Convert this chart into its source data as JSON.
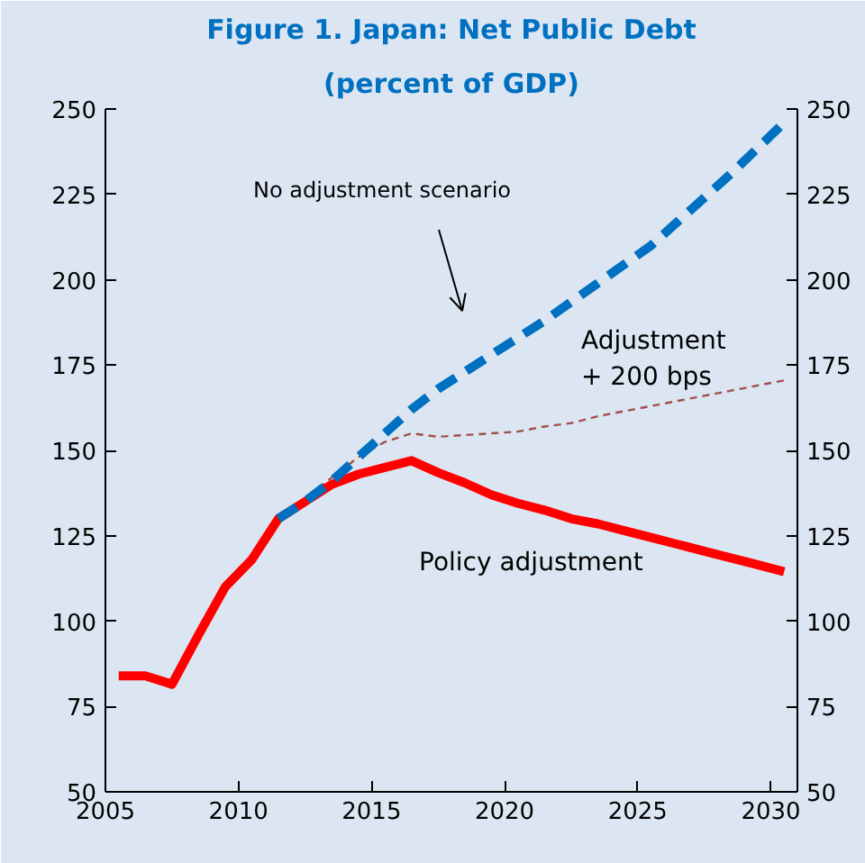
{
  "chart_data": {
    "type": "line",
    "title": "Figure 1. Japan: Net Public Debt",
    "subtitle": "(percent of GDP)",
    "annotations": [
      "No adjustment scenario"
    ],
    "xlim": [
      2005,
      2031
    ],
    "xticks": [
      2005,
      2010,
      2015,
      2020,
      2025,
      2030
    ],
    "ylim": [
      50,
      250
    ],
    "yticks": [
      50,
      75,
      100,
      125,
      150,
      175,
      200,
      225,
      250
    ],
    "y2lim": [
      50,
      250
    ],
    "y2ticks": [
      50,
      75,
      100,
      125,
      150,
      175,
      200,
      225,
      250
    ],
    "grid": false,
    "series": [
      {
        "color": "#0070c0",
        "line_style": "dashed",
        "x": [
          2011.5,
          2012.5,
          2013.5,
          2014.5,
          2015.5,
          2016.5,
          2017.5,
          2018.5,
          2019.5,
          2020.5,
          2021.5,
          2022.5,
          2023.5,
          2024.5,
          2025.5,
          2026.5,
          2027.5,
          2028.5,
          2029.5,
          2030.5
        ],
        "values": [
          130,
          135,
          141,
          148,
          155,
          162,
          168,
          173,
          178,
          183,
          188,
          193.5,
          199,
          204.5,
          210,
          217,
          224,
          231,
          238.5,
          246
        ]
      },
      {
        "name": "Adjustment\n+ 200 bps",
        "color": "#a0504a",
        "line_style": "dashed",
        "x": [
          2011.5,
          2012.5,
          2013.5,
          2014.5,
          2015.5,
          2016.5,
          2017.5,
          2018.5,
          2019.5,
          2020.5,
          2021.5,
          2022.5,
          2023.5,
          2024.5,
          2025.5,
          2026.5,
          2027.5,
          2028.5,
          2029.5,
          2030.5
        ],
        "values": [
          130,
          136,
          142,
          148,
          152.5,
          155,
          154,
          154.5,
          155,
          155.5,
          157,
          158,
          160,
          161.5,
          163,
          164.5,
          166,
          167.5,
          169,
          170.5
        ]
      },
      {
        "name": "Policy adjustment",
        "color": "#ff0000",
        "line_style": "solid",
        "x": [
          2005.5,
          2006.5,
          2007.5,
          2008.5,
          2009.5,
          2010.5,
          2011.5,
          2012.5,
          2013.5,
          2014.5,
          2015.5,
          2016.5,
          2017.5,
          2018.5,
          2019.5,
          2020.5,
          2021.5,
          2022.5,
          2023.5,
          2024.5,
          2025.5,
          2026.5,
          2027.5,
          2028.5,
          2029.5,
          2030.5
        ],
        "values": [
          84,
          84,
          81.5,
          96,
          110,
          118,
          130,
          135,
          140,
          143,
          145,
          147,
          143.5,
          140.5,
          137,
          134.5,
          132.5,
          130,
          128.5,
          126.5,
          124.5,
          122.5,
          120.5,
          118.5,
          116.5,
          114.5
        ]
      }
    ]
  }
}
